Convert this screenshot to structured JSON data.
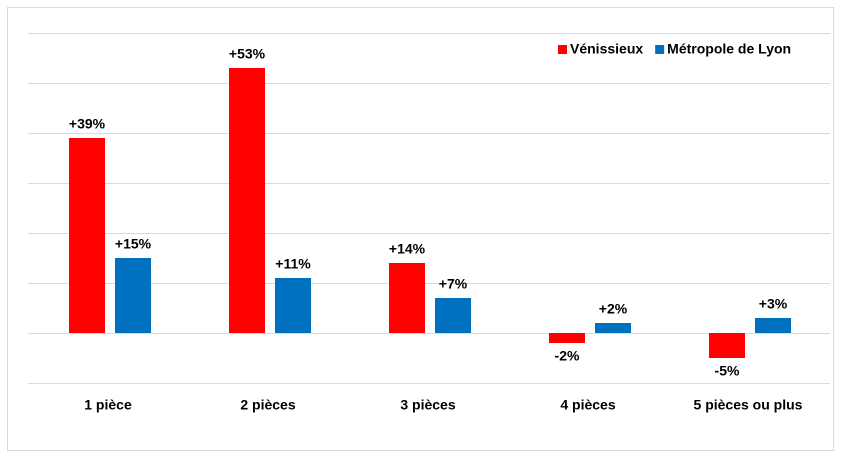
{
  "chart_data": {
    "type": "bar",
    "categories": [
      "1 pièce",
      "2 pièces",
      "3 pièces",
      "4 pièces",
      "5 pièces ou plus"
    ],
    "series": [
      {
        "name": "Vénissieux",
        "color": "#ff0000",
        "values": [
          39,
          53,
          14,
          -2,
          -5
        ],
        "value_labels": [
          "+39%",
          "+53%",
          "+14%",
          "-2%",
          "-5%"
        ]
      },
      {
        "name": "Métropole de Lyon",
        "color": "#0070c0",
        "values": [
          15,
          11,
          7,
          2,
          3
        ],
        "value_labels": [
          "+15%",
          "+11%",
          "+7%",
          "+2%",
          "+3%"
        ]
      }
    ],
    "ylim": [
      -10,
      60
    ],
    "yticks": [
      -10,
      0,
      10,
      20,
      30,
      40,
      50,
      60
    ],
    "grid": true,
    "legend": "top-right"
  }
}
